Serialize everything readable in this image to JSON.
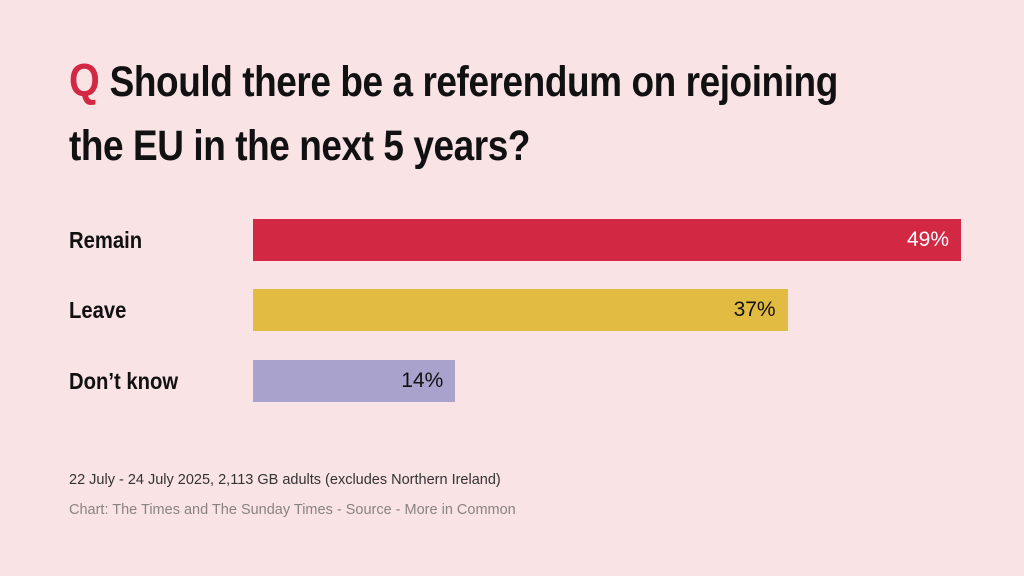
{
  "question_marker": "Q",
  "title": "Should there be a referendum on rejoining the EU in the next 5 years?",
  "note": "22 July - 24 July 2025, 2,113 GB adults (excludes Northern Ireland)",
  "source": "Chart: The Times and The Sunday Times - Source - More in Common",
  "colors": {
    "background": "#f9e3e4",
    "accent": "#d32843"
  },
  "chart_data": {
    "type": "bar",
    "orientation": "horizontal",
    "title": "Should there be a referendum on rejoining the EU in the next 5 years?",
    "categories": [
      "Remain",
      "Leave",
      "Don’t know"
    ],
    "values": [
      49,
      37,
      14
    ],
    "value_labels": [
      "49%",
      "37%",
      "14%"
    ],
    "unit": "%",
    "colors": [
      "#d32843",
      "#e2bb42",
      "#a9a2cd"
    ],
    "label_colors": [
      "#ffffff",
      "#111111",
      "#111111"
    ],
    "xlim": [
      0,
      49
    ],
    "grid": false,
    "legend": "none"
  }
}
